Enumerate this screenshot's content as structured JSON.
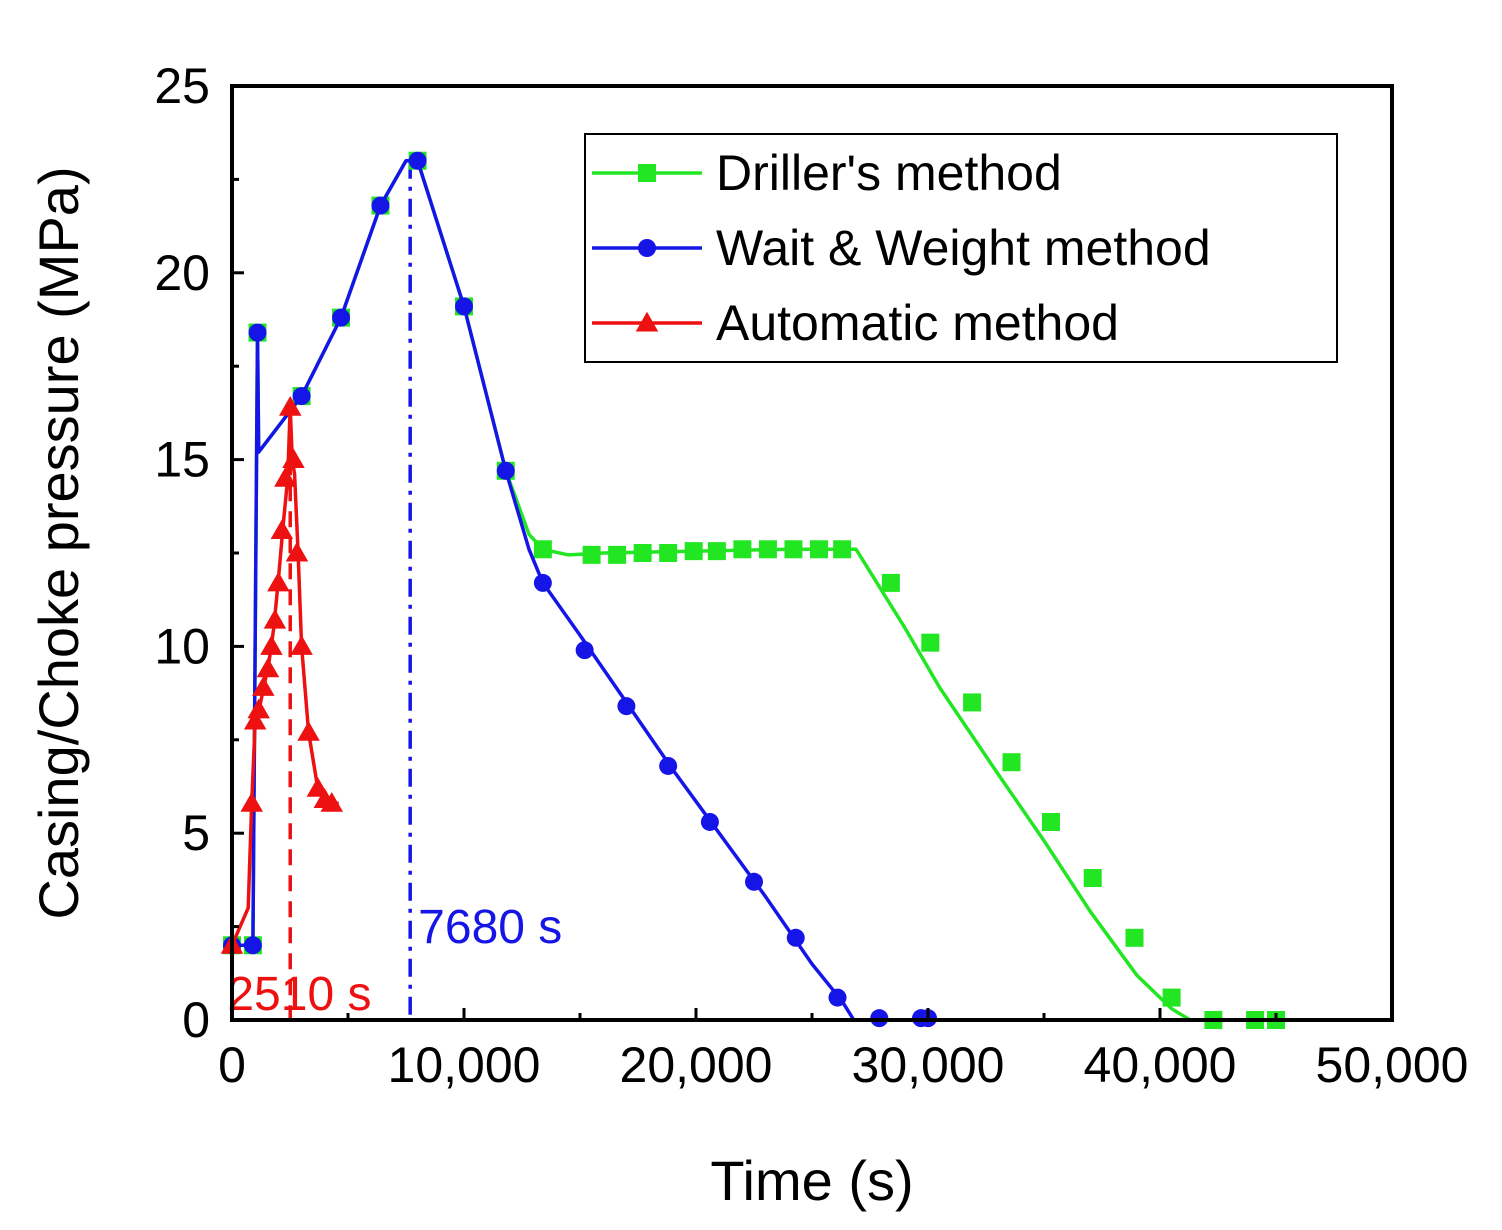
{
  "chart_data": {
    "type": "line",
    "title": "",
    "xlabel": "Time (s)",
    "ylabel": "Casing/Choke pressure (MPa)",
    "xlim": [
      0,
      50000
    ],
    "ylim": [
      0,
      25
    ],
    "xticks": [
      0,
      10000,
      20000,
      30000,
      40000,
      50000
    ],
    "xtick_labels": [
      "0",
      "10,000",
      "20,000",
      "30,000",
      "40,000",
      "50,000"
    ],
    "yticks": [
      0,
      5,
      10,
      15,
      20,
      25
    ],
    "ytick_labels": [
      "0",
      "5",
      "10",
      "15",
      "20",
      "25"
    ],
    "grid": false,
    "legend_position": "top-right",
    "series": [
      {
        "name": "Driller's method",
        "color": "#22e622",
        "marker": "square",
        "line": [
          [
            0,
            2
          ],
          [
            900,
            2
          ],
          [
            1100,
            18.4
          ],
          [
            1150,
            15.2
          ],
          [
            3000,
            16.7
          ],
          [
            4700,
            18.8
          ],
          [
            6400,
            21.8
          ],
          [
            7500,
            23
          ],
          [
            8000,
            23
          ],
          [
            10000,
            19.1
          ],
          [
            11800,
            14.7
          ],
          [
            12800,
            13
          ],
          [
            13400,
            12.6
          ],
          [
            14500,
            12.45
          ],
          [
            16000,
            12.5
          ],
          [
            20000,
            12.55
          ],
          [
            24000,
            12.6
          ],
          [
            26900,
            12.6
          ],
          [
            27500,
            12
          ],
          [
            29000,
            10.5
          ],
          [
            30500,
            8.9
          ],
          [
            33000,
            6.6
          ],
          [
            35000,
            4.8
          ],
          [
            37000,
            2.9
          ],
          [
            39000,
            1.2
          ],
          [
            40500,
            0.3
          ],
          [
            41300,
            0
          ],
          [
            45000,
            0
          ]
        ],
        "markers": [
          [
            0,
            2
          ],
          [
            900,
            2
          ],
          [
            1100,
            18.4
          ],
          [
            3000,
            16.7
          ],
          [
            4700,
            18.8
          ],
          [
            6400,
            21.8
          ],
          [
            8000,
            23
          ],
          [
            10000,
            19.1
          ],
          [
            11800,
            14.7
          ],
          [
            13400,
            12.6
          ],
          [
            15500,
            12.45
          ],
          [
            16600,
            12.45
          ],
          [
            17700,
            12.5
          ],
          [
            18800,
            12.5
          ],
          [
            19900,
            12.55
          ],
          [
            20900,
            12.55
          ],
          [
            22000,
            12.6
          ],
          [
            23100,
            12.6
          ],
          [
            24200,
            12.6
          ],
          [
            25300,
            12.6
          ],
          [
            26300,
            12.6
          ],
          [
            28400,
            11.7
          ],
          [
            30100,
            10.1
          ],
          [
            31900,
            8.5
          ],
          [
            33600,
            6.9
          ],
          [
            35300,
            5.3
          ],
          [
            37100,
            3.8
          ],
          [
            38900,
            2.2
          ],
          [
            40500,
            0.6
          ],
          [
            42300,
            0
          ],
          [
            44100,
            0
          ],
          [
            45000,
            0
          ]
        ]
      },
      {
        "name": "Wait & Weight method",
        "color": "#1515e8",
        "marker": "circle",
        "line": [
          [
            0,
            2
          ],
          [
            900,
            2
          ],
          [
            1100,
            18.4
          ],
          [
            1150,
            15.2
          ],
          [
            3000,
            16.7
          ],
          [
            4700,
            18.8
          ],
          [
            6400,
            21.8
          ],
          [
            7500,
            23
          ],
          [
            8000,
            23
          ],
          [
            10000,
            19.1
          ],
          [
            11800,
            14.7
          ],
          [
            12800,
            12.6
          ],
          [
            13400,
            11.7
          ],
          [
            15000,
            10.3
          ],
          [
            17000,
            8.5
          ],
          [
            19000,
            6.7
          ],
          [
            21000,
            5
          ],
          [
            23000,
            3.3
          ],
          [
            25000,
            1.5
          ],
          [
            26300,
            0.5
          ],
          [
            26800,
            0
          ],
          [
            30000,
            0
          ]
        ],
        "markers": [
          [
            0,
            2
          ],
          [
            900,
            2
          ],
          [
            1100,
            18.4
          ],
          [
            3000,
            16.7
          ],
          [
            4700,
            18.8
          ],
          [
            6400,
            21.8
          ],
          [
            8000,
            23
          ],
          [
            10000,
            19.1
          ],
          [
            11800,
            14.7
          ],
          [
            13400,
            11.7
          ],
          [
            15200,
            9.9
          ],
          [
            17000,
            8.4
          ],
          [
            18800,
            6.8
          ],
          [
            20600,
            5.3
          ],
          [
            22500,
            3.7
          ],
          [
            24300,
            2.2
          ],
          [
            26100,
            0.6
          ],
          [
            27900,
            0.05
          ],
          [
            29700,
            0.05
          ],
          [
            30000,
            0.05
          ]
        ]
      },
      {
        "name": "Automatic method",
        "color": "#ee1111",
        "marker": "triangle",
        "line": [
          [
            0,
            2
          ],
          [
            700,
            3
          ],
          [
            850,
            5.8
          ],
          [
            1000,
            8
          ],
          [
            1200,
            8.4
          ],
          [
            1400,
            9
          ],
          [
            1600,
            9.6
          ],
          [
            1800,
            10.5
          ],
          [
            2000,
            11.8
          ],
          [
            2200,
            13.2
          ],
          [
            2400,
            14.5
          ],
          [
            2510,
            16.4
          ],
          [
            2600,
            15
          ],
          [
            2700,
            14.6
          ],
          [
            2850,
            12.5
          ],
          [
            3000,
            10
          ],
          [
            3300,
            7.7
          ],
          [
            3700,
            6.2
          ],
          [
            4200,
            5.8
          ],
          [
            4600,
            5.8
          ]
        ],
        "markers": [
          [
            0,
            2
          ],
          [
            850,
            5.8
          ],
          [
            1000,
            8
          ],
          [
            1150,
            8.3
          ],
          [
            1350,
            8.9
          ],
          [
            1550,
            9.4
          ],
          [
            1700,
            10
          ],
          [
            1850,
            10.7
          ],
          [
            2000,
            11.7
          ],
          [
            2150,
            13.1
          ],
          [
            2300,
            14.5
          ],
          [
            2510,
            16.4
          ],
          [
            2650,
            15
          ],
          [
            2800,
            12.5
          ],
          [
            3000,
            10
          ],
          [
            3300,
            7.7
          ],
          [
            3700,
            6.2
          ],
          [
            4000,
            5.9
          ],
          [
            4300,
            5.8
          ]
        ]
      }
    ],
    "annotations": [
      {
        "text": "2510 s",
        "x": 2510,
        "color": "#ee1111",
        "style": "dashed"
      },
      {
        "text": "7680 s",
        "x": 7680,
        "color": "#1515e8",
        "style": "dash-dot"
      }
    ]
  }
}
